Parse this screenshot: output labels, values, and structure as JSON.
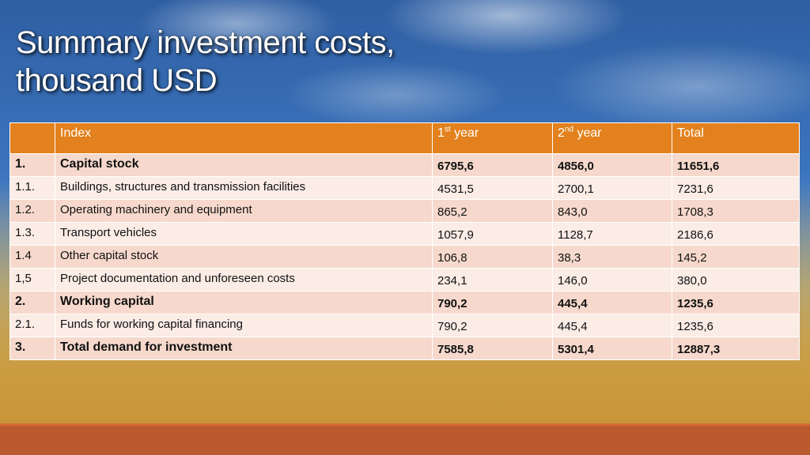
{
  "title": {
    "line1": "Summary investment costs,",
    "line2": "thousand USD"
  },
  "table": {
    "headers": {
      "index": "Index",
      "year1_num": "1",
      "year1_sup": "st",
      "year1_word": " year",
      "year2_num": "2",
      "year2_sup": "nd",
      "year2_word": " year",
      "total": "Total"
    },
    "rows": [
      {
        "no": "1.",
        "label": "Capital stock",
        "y1": "6795,6",
        "y2": "4856,0",
        "total": "11651,6",
        "bold": true
      },
      {
        "no": "1.1.",
        "label": "Buildings, structures and transmission facilities",
        "y1": "4531,5",
        "y2": "2700,1",
        "total": "7231,6",
        "bold": false
      },
      {
        "no": "1.2.",
        "label": "Operating machinery and equipment",
        "y1": "865,2",
        "y2": "843,0",
        "total": "1708,3",
        "bold": false
      },
      {
        "no": "1.3.",
        "label": "Transport vehicles",
        "y1": "1057,9",
        "y2": "1128,7",
        "total": "2186,6",
        "bold": false
      },
      {
        "no": "1.4",
        "label": "Other capital stock",
        "y1": "106,8",
        "y2": "38,3",
        "total": "145,2",
        "bold": false
      },
      {
        "no": "1,5",
        "label": "Project documentation and unforeseen costs",
        "y1": "234,1",
        "y2": "146,0",
        "total": "380,0",
        "bold": false
      },
      {
        "no": "2.",
        "label": "Working capital",
        "y1": "790,2",
        "y2": "445,4",
        "total": "1235,6",
        "bold": true
      },
      {
        "no": "2.1.",
        "label": "Funds for working capital financing",
        "y1": "790,2",
        "y2": "445,4",
        "total": "1235,6",
        "bold": false
      },
      {
        "no": "3.",
        "label": "Total demand for investment",
        "y1": "7585,8",
        "y2": "5301,4",
        "total": "12887,3",
        "bold": true
      }
    ]
  },
  "colors": {
    "header": "#e2811d",
    "row_odd": "#f6d9cc",
    "row_even": "#fbece6",
    "footer": "#bb5a2e"
  }
}
